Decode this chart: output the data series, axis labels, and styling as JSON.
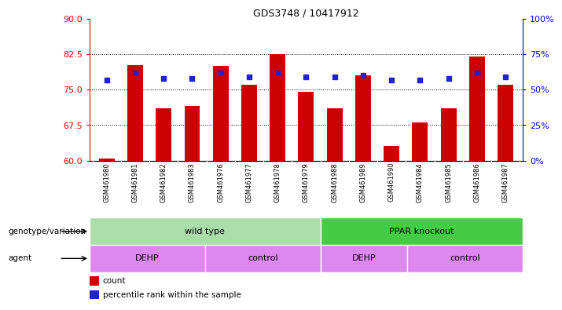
{
  "title": "GDS3748 / 10417912",
  "samples": [
    "GSM461980",
    "GSM461981",
    "GSM461982",
    "GSM461983",
    "GSM461976",
    "GSM461977",
    "GSM461978",
    "GSM461979",
    "GSM461988",
    "GSM461989",
    "GSM461990",
    "GSM461984",
    "GSM461985",
    "GSM461986",
    "GSM461987"
  ],
  "bar_values": [
    60.5,
    80.2,
    71.0,
    71.5,
    80.0,
    76.0,
    82.5,
    74.5,
    71.0,
    78.0,
    63.0,
    68.0,
    71.0,
    82.0,
    76.0
  ],
  "percentile_values": [
    57,
    62,
    58,
    58,
    62,
    59,
    62,
    59,
    59,
    60,
    57,
    57,
    58,
    62,
    59
  ],
  "bar_bottom": 60,
  "ylim_left": [
    60,
    90
  ],
  "ylim_right": [
    0,
    100
  ],
  "yticks_left": [
    60,
    67.5,
    75,
    82.5,
    90
  ],
  "yticks_right": [
    0,
    25,
    50,
    75,
    100
  ],
  "ytick_labels_right": [
    "0%",
    "25%",
    "50%",
    "75%",
    "100%"
  ],
  "bar_color": "#cc0000",
  "dot_color": "#2222cc",
  "bg_color": "#ffffff",
  "genotype_label": "genotype/variation",
  "agent_label": "agent",
  "genotype_groups": [
    {
      "label": "wild type",
      "start": 0,
      "end": 8,
      "color": "#aaddaa"
    },
    {
      "label": "PPAR knockout",
      "start": 8,
      "end": 15,
      "color": "#44cc44"
    }
  ],
  "agent_groups": [
    {
      "label": "DEHP",
      "start": 0,
      "end": 4,
      "color": "#dd88ee"
    },
    {
      "label": "control",
      "start": 4,
      "end": 8,
      "color": "#dd88ee"
    },
    {
      "label": "DEHP",
      "start": 8,
      "end": 11,
      "color": "#dd88ee"
    },
    {
      "label": "control",
      "start": 11,
      "end": 15,
      "color": "#dd88ee"
    }
  ],
  "legend_count_color": "#cc0000",
  "legend_dot_color": "#2222cc",
  "bar_width": 0.55
}
